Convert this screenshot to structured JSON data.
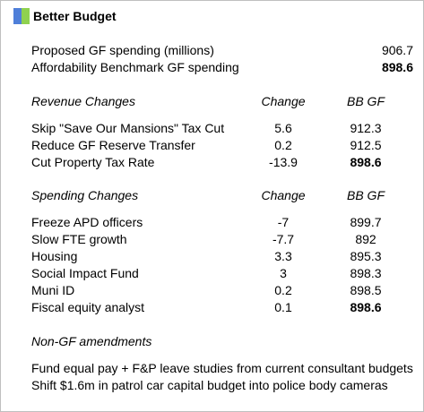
{
  "colors": {
    "logo_left": "#4f7fd9",
    "logo_right": "#8fd14f"
  },
  "brand": "Better Budget",
  "summary": [
    {
      "label": "Proposed GF spending (millions)",
      "value": "906.7"
    },
    {
      "label": "Affordability Benchmark GF spending",
      "value": "898.6"
    }
  ],
  "revenue": {
    "heading": "Revenue Changes",
    "change_header": "Change",
    "bb_header": "BB GF",
    "rows": [
      {
        "label": "Skip \"Save Our Mansions\" Tax Cut",
        "change": "5.6",
        "bb": "912.3"
      },
      {
        "label": "Reduce GF Reserve Transfer",
        "change": "0.2",
        "bb": "912.5"
      },
      {
        "label": "Cut Property Tax Rate",
        "change": "-13.9",
        "bb": "898.6"
      }
    ]
  },
  "spending": {
    "heading": "Spending Changes",
    "change_header": "Change",
    "bb_header": "BB GF",
    "rows": [
      {
        "label": "Freeze APD officers",
        "change": "-7",
        "bb": "899.7"
      },
      {
        "label": "Slow FTE growth",
        "change": "-7.7",
        "bb": "892"
      },
      {
        "label": "Housing",
        "change": "3.3",
        "bb": "895.3"
      },
      {
        "label": "Social Impact Fund",
        "change": "3",
        "bb": "898.3"
      },
      {
        "label": "Muni ID",
        "change": "0.2",
        "bb": "898.5"
      },
      {
        "label": "Fiscal equity analyst",
        "change": "0.1",
        "bb": "898.6"
      }
    ]
  },
  "non_gf": {
    "heading": "Non-GF amendments",
    "items": [
      "Fund equal pay + F&P leave studies from current consultant budgets",
      "Shift $1.6m in patrol car capital budget into police body cameras"
    ]
  }
}
